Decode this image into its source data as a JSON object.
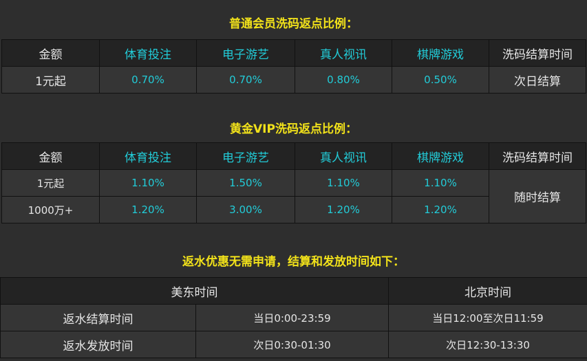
{
  "normal": {
    "title": "普通会员洗码返点比例：",
    "headers": [
      "金额",
      "体育投注",
      "电子游艺",
      "真人视讯",
      "棋牌游戏",
      "洗码结算时间"
    ],
    "rows": [
      [
        "1元起",
        "0.70%",
        "0.70%",
        "0.80%",
        "0.50%",
        "次日结算"
      ]
    ]
  },
  "vip": {
    "title": "黄金VIP洗码返点比例：",
    "headers": [
      "金额",
      "体育投注",
      "电子游艺",
      "真人视讯",
      "棋牌游戏",
      "洗码结算时间"
    ],
    "rows": [
      [
        "1元起",
        "1.10%",
        "1.50%",
        "1.10%",
        "1.10%"
      ],
      [
        "1000万+",
        "1.20%",
        "3.00%",
        "1.20%",
        "1.20%"
      ]
    ],
    "settle": "随时结算"
  },
  "rebate": {
    "title": "返水优惠无需申请，结算和发放时间如下：",
    "headers": [
      "美东时间",
      "北京时间"
    ],
    "rows": [
      [
        "返水结算时间",
        "当日0:00-23:59",
        "当日12:00至次日11:59"
      ],
      [
        "返水发放时间",
        "次日0:30-01:30",
        "次日12:30-13:30"
      ]
    ]
  },
  "colors": {
    "title": "#f2e21a",
    "accent": "#22ccd8"
  }
}
